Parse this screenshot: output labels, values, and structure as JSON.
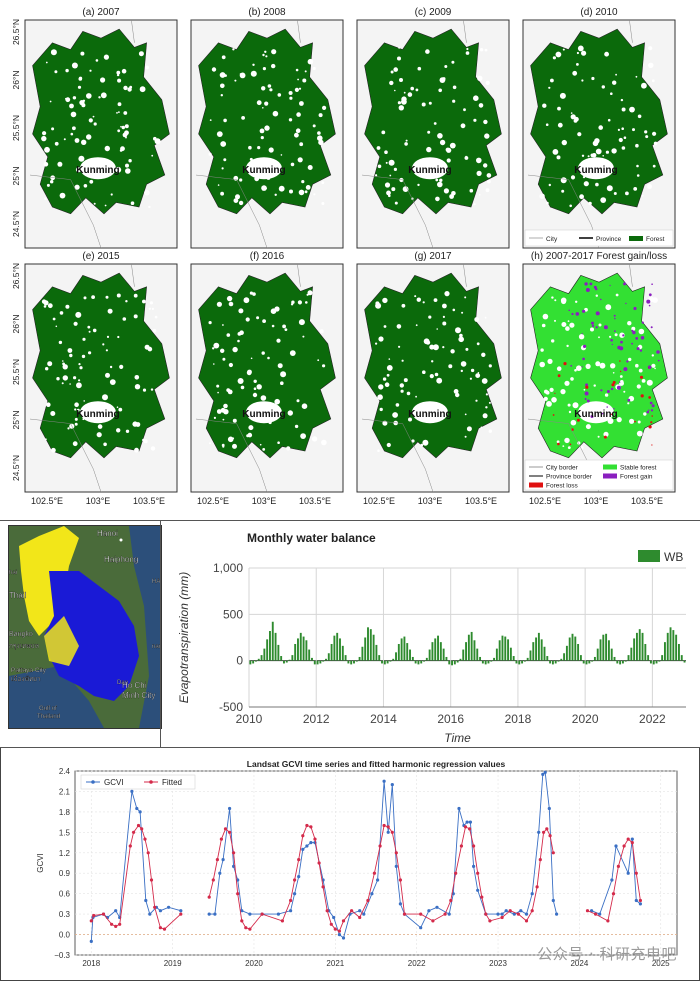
{
  "maps": {
    "panels": [
      {
        "title": "(a) 2007",
        "city": "Kunming",
        "kind": "forest"
      },
      {
        "title": "(b) 2008",
        "city": "Kunming",
        "kind": "forest"
      },
      {
        "title": "(c) 2009",
        "city": "Kunming",
        "kind": "forest"
      },
      {
        "title": "(d) 2010",
        "city": "Kunming",
        "kind": "forest"
      },
      {
        "title": "(e) 2015",
        "city": "Kunming",
        "kind": "forest"
      },
      {
        "title": "(f) 2016",
        "city": "Kunming",
        "kind": "forest"
      },
      {
        "title": "(g) 2017",
        "city": "Kunming",
        "kind": "forest"
      },
      {
        "title": "(h) 2007-2017 Forest gain/loss",
        "city": "Kunming",
        "kind": "change"
      }
    ],
    "lat_labels": [
      "26.5°N",
      "26°N",
      "25.5°N",
      "25°N",
      "24.5°N"
    ],
    "lon_labels": [
      "102.5°E",
      "103°E",
      "103.5°E"
    ],
    "legend_top": [
      {
        "label": "City",
        "color": "#999999"
      },
      {
        "label": "Province",
        "color": "#000000"
      },
      {
        "label": "Forest",
        "color": "#0b6a0b"
      }
    ],
    "legend_bottom": [
      {
        "label": "City border",
        "color": "#999999"
      },
      {
        "label": "Stable forest",
        "color": "#33e033"
      },
      {
        "label": "Province border",
        "color": "#000000"
      },
      {
        "label": "Forest gain",
        "color": "#8a1fbf"
      },
      {
        "label": "Forest loss",
        "color": "#e01010"
      }
    ],
    "colors": {
      "forest": "#0b6a0b",
      "stable": "#33e033",
      "gain": "#8a1fbf",
      "loss": "#e01010",
      "bg": "#f4f4f4"
    }
  },
  "satellite": {
    "labels": [
      "Hanoi",
      "Haiphong",
      "Thail",
      "Bangko",
      "กรุงเทพมห",
      "Pattaya City",
      "เมืองพัทยา",
      "Gulf of",
      "Thailand",
      "Dao",
      "Ho Chi",
      "Minh City",
      "HA",
      "hai",
      "nam"
    ],
    "colors": {
      "land": "#4a6b3a",
      "sea": "#2c4f7a",
      "yellow": "#f2e619",
      "blue": "#1a1ad6"
    }
  },
  "chart_data": [
    {
      "type": "bar",
      "title": "Monthly water balance",
      "xlabel": "Time",
      "ylabel": "Evapotranspiration (mm)",
      "legend": [
        "WB"
      ],
      "legend_position": "top-right",
      "color": "#2e8b2e",
      "ylim": [
        -500,
        1000
      ],
      "yticks": [
        -500,
        0,
        500,
        1000
      ],
      "ytick_labels": [
        "-500",
        "0",
        "500",
        "1,000"
      ],
      "xlim": [
        2010,
        2023
      ],
      "xticks": [
        2010,
        2012,
        2014,
        2016,
        2018,
        2020,
        2022
      ],
      "series": [
        {
          "name": "WB",
          "start_year": 2010,
          "monthly_values": [
            -40,
            -30,
            -10,
            20,
            60,
            130,
            230,
            320,
            420,
            300,
            170,
            50,
            -30,
            -20,
            10,
            60,
            180,
            240,
            300,
            260,
            220,
            120,
            30,
            -40,
            -40,
            -30,
            -10,
            20,
            80,
            180,
            270,
            300,
            240,
            160,
            60,
            -30,
            -40,
            -30,
            -10,
            40,
            150,
            250,
            360,
            340,
            280,
            170,
            60,
            -30,
            -40,
            -30,
            -10,
            20,
            90,
            180,
            240,
            260,
            190,
            120,
            40,
            -30,
            -40,
            -30,
            -10,
            30,
            120,
            200,
            240,
            270,
            200,
            130,
            40,
            -40,
            -50,
            -40,
            -20,
            20,
            120,
            200,
            280,
            310,
            220,
            130,
            40,
            -30,
            -40,
            -30,
            -10,
            30,
            130,
            220,
            270,
            260,
            230,
            140,
            50,
            -30,
            -40,
            -30,
            -10,
            30,
            110,
            200,
            250,
            300,
            230,
            150,
            50,
            -30,
            -40,
            -30,
            -10,
            20,
            80,
            160,
            250,
            290,
            260,
            180,
            60,
            -30,
            -40,
            -30,
            -10,
            40,
            130,
            230,
            280,
            290,
            220,
            130,
            40,
            -30,
            -40,
            -30,
            -10,
            60,
            140,
            240,
            300,
            340,
            300,
            180,
            60,
            -30,
            -40,
            -30,
            -10,
            60,
            200,
            300,
            360,
            330,
            280,
            180,
            60,
            -20
          ]
        }
      ]
    },
    {
      "type": "line",
      "title": "Landsat GCVI time series and fitted harmonic regression values",
      "xlabel": "",
      "ylabel": "GCVI",
      "legend_position": "top-left",
      "ylim": [
        -0.3,
        2.4
      ],
      "yticks": [
        -0.3,
        0.0,
        0.3,
        0.6,
        0.9,
        1.2,
        1.5,
        1.8,
        2.1,
        2.4
      ],
      "ytick_labels": [
        "−0.3",
        "0.0",
        "0.3",
        "0.6",
        "0.9",
        "1.2",
        "1.5",
        "1.8",
        "2.1",
        "2.4"
      ],
      "xlim": [
        2017.8,
        2025.2
      ],
      "xticks": [
        2018,
        2019,
        2020,
        2021,
        2022,
        2023,
        2024,
        2025
      ],
      "grid": true,
      "series": [
        {
          "name": "GCVI",
          "color": "#3a6fc4",
          "points": [
            [
              2018.0,
              -0.1
            ],
            [
              2018.02,
              0.25
            ],
            [
              2018.15,
              0.3
            ],
            [
              2018.2,
              0.25
            ],
            [
              2018.3,
              0.35
            ],
            [
              2018.35,
              0.25
            ],
            [
              2018.5,
              2.1
            ],
            [
              2018.56,
              1.85
            ],
            [
              2018.6,
              1.8
            ],
            [
              2018.67,
              0.5
            ],
            [
              2018.72,
              0.3
            ],
            [
              2018.8,
              0.4
            ],
            [
              2018.85,
              0.35
            ],
            [
              2018.95,
              0.4
            ],
            [
              2019.1,
              0.35
            ],
            [
              2019.45,
              0.3
            ],
            [
              2019.52,
              0.3
            ],
            [
              2019.58,
              0.9
            ],
            [
              2019.62,
              1.1
            ],
            [
              2019.7,
              1.85
            ],
            [
              2019.75,
              1.0
            ],
            [
              2019.8,
              0.8
            ],
            [
              2019.85,
              0.35
            ],
            [
              2019.95,
              0.3
            ],
            [
              2020.1,
              0.3
            ],
            [
              2020.3,
              0.3
            ],
            [
              2020.45,
              0.35
            ],
            [
              2020.5,
              0.6
            ],
            [
              2020.55,
              0.85
            ],
            [
              2020.6,
              1.25
            ],
            [
              2020.65,
              1.3
            ],
            [
              2020.7,
              1.35
            ],
            [
              2020.75,
              1.35
            ],
            [
              2020.85,
              0.8
            ],
            [
              2020.92,
              0.35
            ],
            [
              2020.98,
              0.25
            ],
            [
              2021.05,
              0.0
            ],
            [
              2021.1,
              -0.05
            ],
            [
              2021.18,
              0.3
            ],
            [
              2021.3,
              0.35
            ],
            [
              2021.35,
              0.3
            ],
            [
              2021.45,
              0.6
            ],
            [
              2021.52,
              0.8
            ],
            [
              2021.6,
              2.25
            ],
            [
              2021.65,
              1.5
            ],
            [
              2021.7,
              2.2
            ],
            [
              2021.75,
              1.0
            ],
            [
              2021.8,
              0.45
            ],
            [
              2021.85,
              0.3
            ],
            [
              2022.05,
              0.1
            ],
            [
              2022.15,
              0.35
            ],
            [
              2022.25,
              0.4
            ],
            [
              2022.4,
              0.3
            ],
            [
              2022.45,
              0.6
            ],
            [
              2022.52,
              1.85
            ],
            [
              2022.58,
              1.6
            ],
            [
              2022.62,
              1.65
            ],
            [
              2022.66,
              1.65
            ],
            [
              2022.7,
              1.0
            ],
            [
              2022.75,
              0.65
            ],
            [
              2022.85,
              0.3
            ],
            [
              2023.0,
              0.3
            ],
            [
              2023.05,
              0.3
            ],
            [
              2023.1,
              0.35
            ],
            [
              2023.2,
              0.3
            ],
            [
              2023.28,
              0.35
            ],
            [
              2023.35,
              0.3
            ],
            [
              2023.42,
              0.6
            ],
            [
              2023.5,
              1.5
            ],
            [
              2023.55,
              2.35
            ],
            [
              2023.58,
              2.38
            ],
            [
              2023.63,
              1.85
            ],
            [
              2023.68,
              0.5
            ],
            [
              2023.72,
              0.3
            ],
            [
              2024.15,
              0.35
            ],
            [
              2024.25,
              0.3
            ],
            [
              2024.4,
              0.8
            ],
            [
              2024.45,
              1.3
            ],
            [
              2024.6,
              0.9
            ],
            [
              2024.65,
              1.4
            ],
            [
              2024.7,
              0.5
            ],
            [
              2024.75,
              0.45
            ]
          ]
        },
        {
          "name": "Fitted",
          "color": "#d42a4a",
          "points": [
            [
              2018.0,
              0.2
            ],
            [
              2018.03,
              0.28
            ],
            [
              2018.15,
              0.3
            ],
            [
              2018.25,
              0.15
            ],
            [
              2018.3,
              0.12
            ],
            [
              2018.35,
              0.15
            ],
            [
              2018.48,
              1.3
            ],
            [
              2018.52,
              1.5
            ],
            [
              2018.58,
              1.6
            ],
            [
              2018.62,
              1.55
            ],
            [
              2018.66,
              1.4
            ],
            [
              2018.7,
              1.2
            ],
            [
              2018.74,
              0.8
            ],
            [
              2018.78,
              0.4
            ],
            [
              2018.85,
              0.1
            ],
            [
              2018.9,
              0.08
            ],
            [
              2019.1,
              0.3
            ],
            [
              2019.45,
              0.55
            ],
            [
              2019.5,
              0.8
            ],
            [
              2019.55,
              1.1
            ],
            [
              2019.6,
              1.4
            ],
            [
              2019.65,
              1.55
            ],
            [
              2019.7,
              1.5
            ],
            [
              2019.75,
              1.2
            ],
            [
              2019.8,
              0.6
            ],
            [
              2019.85,
              0.2
            ],
            [
              2019.9,
              0.1
            ],
            [
              2019.95,
              0.08
            ],
            [
              2020.1,
              0.3
            ],
            [
              2020.35,
              0.2
            ],
            [
              2020.45,
              0.5
            ],
            [
              2020.5,
              0.8
            ],
            [
              2020.55,
              1.1
            ],
            [
              2020.6,
              1.45
            ],
            [
              2020.65,
              1.6
            ],
            [
              2020.7,
              1.58
            ],
            [
              2020.75,
              1.4
            ],
            [
              2020.8,
              1.05
            ],
            [
              2020.85,
              0.7
            ],
            [
              2020.9,
              0.35
            ],
            [
              2020.95,
              0.15
            ],
            [
              2021.0,
              0.08
            ],
            [
              2021.05,
              0.05
            ],
            [
              2021.1,
              0.2
            ],
            [
              2021.2,
              0.35
            ],
            [
              2021.3,
              0.25
            ],
            [
              2021.4,
              0.5
            ],
            [
              2021.48,
              0.9
            ],
            [
              2021.55,
              1.3
            ],
            [
              2021.6,
              1.6
            ],
            [
              2021.65,
              1.58
            ],
            [
              2021.7,
              1.5
            ],
            [
              2021.75,
              1.2
            ],
            [
              2021.8,
              0.8
            ],
            [
              2021.85,
              0.3
            ],
            [
              2022.05,
              0.3
            ],
            [
              2022.2,
              0.2
            ],
            [
              2022.35,
              0.3
            ],
            [
              2022.42,
              0.5
            ],
            [
              2022.48,
              0.9
            ],
            [
              2022.55,
              1.3
            ],
            [
              2022.6,
              1.58
            ],
            [
              2022.65,
              1.55
            ],
            [
              2022.7,
              1.3
            ],
            [
              2022.75,
              0.9
            ],
            [
              2022.8,
              0.55
            ],
            [
              2022.85,
              0.3
            ],
            [
              2022.9,
              0.2
            ],
            [
              2023.05,
              0.25
            ],
            [
              2023.15,
              0.35
            ],
            [
              2023.25,
              0.3
            ],
            [
              2023.35,
              0.2
            ],
            [
              2023.42,
              0.35
            ],
            [
              2023.48,
              0.7
            ],
            [
              2023.52,
              1.1
            ],
            [
              2023.56,
              1.5
            ],
            [
              2023.6,
              1.55
            ],
            [
              2023.64,
              1.45
            ],
            [
              2023.68,
              1.2
            ],
            [
              2024.1,
              0.35
            ],
            [
              2024.2,
              0.3
            ],
            [
              2024.35,
              0.2
            ],
            [
              2024.42,
              0.6
            ],
            [
              2024.48,
              1.0
            ],
            [
              2024.55,
              1.3
            ],
            [
              2024.6,
              1.4
            ],
            [
              2024.65,
              1.35
            ],
            [
              2024.7,
              0.9
            ],
            [
              2024.75,
              0.5
            ]
          ]
        }
      ]
    }
  ],
  "watermark": "公众号 · 科研充电吧"
}
